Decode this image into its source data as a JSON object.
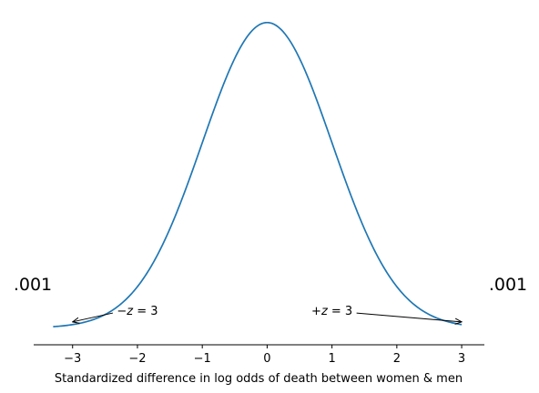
{
  "chart_data": {
    "type": "line",
    "title": "",
    "xlabel": "Standardized difference in log odds of death between women & men",
    "ylabel": "",
    "xlim": [
      -3.6,
      3.35
    ],
    "ylim": [
      -0.055,
      1.05
    ],
    "x_ticks": [
      -3,
      -2,
      -1,
      0,
      1,
      2,
      3
    ],
    "x_tick_labels": [
      "−3",
      "−2",
      "−1",
      "0",
      "1",
      "2",
      "3"
    ],
    "grid": false,
    "series": [
      {
        "color": "#1f77b4",
        "curve": "standard normal density (scaled to peak 1)",
        "x_range": [
          -3.3,
          3.0
        ],
        "peak_x": 0,
        "peak_y": 1.0
      }
    ],
    "side_labels": {
      "left": ".001",
      "right": ".001"
    },
    "annotations": [
      {
        "prefix": "−",
        "italic": "z",
        "suffix": " = 3",
        "text_x": -2.0,
        "text_y": 0.055,
        "arrow_to_x": -3.0,
        "arrow_to_y": 0.02
      },
      {
        "prefix": "+",
        "italic": "z",
        "suffix": " = 3",
        "text_x": 1.0,
        "text_y": 0.055,
        "arrow_to_x": 3.0,
        "arrow_to_y": 0.02
      }
    ]
  }
}
